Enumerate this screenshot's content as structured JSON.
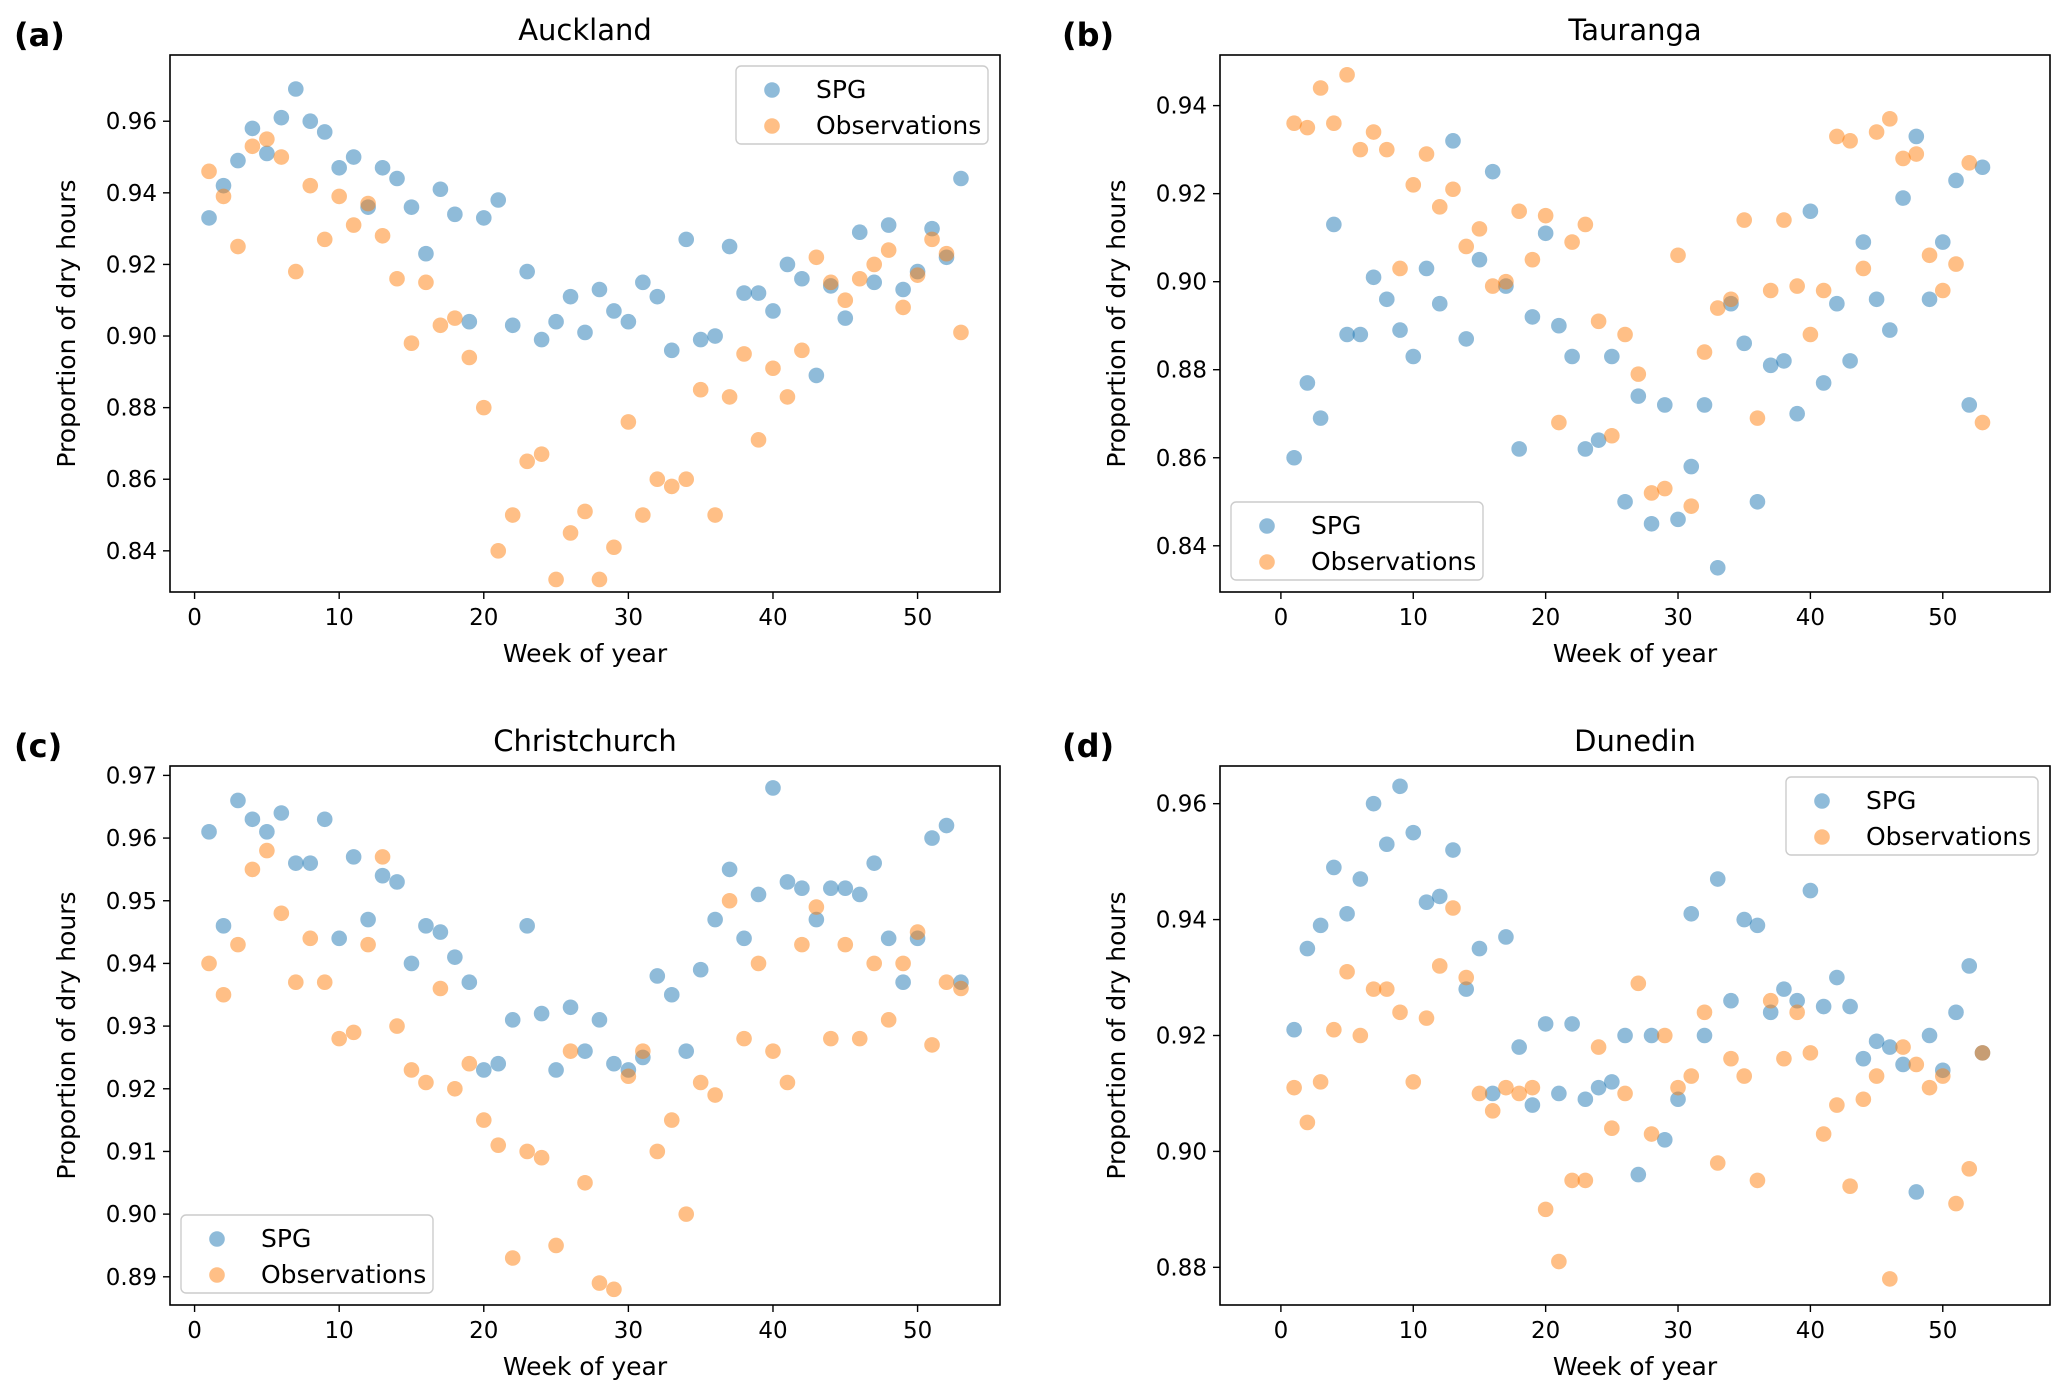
{
  "chart_data": [
    {
      "type": "scatter",
      "panel_label": "(a)",
      "title": "Auckland",
      "xlabel": "Week of year",
      "ylabel": "Proportion of dry hours",
      "xlim": [
        -1.7,
        55.7
      ],
      "ylim": [
        0.8285,
        0.9785
      ],
      "xticks": [
        0,
        10,
        20,
        30,
        40,
        50
      ],
      "yticks": [
        0.84,
        0.86,
        0.88,
        0.9,
        0.92,
        0.94,
        0.96
      ],
      "ytick_labels": [
        "0.84",
        "0.86",
        "0.88",
        "0.90",
        "0.92",
        "0.94",
        "0.96"
      ],
      "legend_position": "top-right",
      "series": [
        {
          "name": "SPG",
          "color": "#1f77b4",
          "x": [
            1,
            2,
            3,
            4,
            5,
            6,
            7,
            8,
            9,
            10,
            11,
            12,
            13,
            14,
            15,
            16,
            17,
            18,
            19,
            20,
            21,
            22,
            23,
            24,
            25,
            26,
            27,
            28,
            29,
            30,
            31,
            32,
            33,
            34,
            35,
            36,
            37,
            38,
            39,
            40,
            41,
            42,
            43,
            44,
            45,
            46,
            47,
            48,
            49,
            50,
            51,
            52,
            53
          ],
          "y": [
            0.933,
            0.942,
            0.949,
            0.958,
            0.951,
            0.961,
            0.969,
            0.96,
            0.957,
            0.947,
            0.95,
            0.936,
            0.947,
            0.944,
            0.936,
            0.923,
            0.941,
            0.934,
            0.904,
            0.933,
            0.938,
            0.903,
            0.918,
            0.899,
            0.904,
            0.911,
            0.901,
            0.913,
            0.907,
            0.904,
            0.915,
            0.911,
            0.896,
            0.927,
            0.899,
            0.9,
            0.925,
            0.912,
            0.912,
            0.907,
            0.92,
            0.916,
            0.889,
            0.914,
            0.905,
            0.929,
            0.915,
            0.931,
            0.913,
            0.918,
            0.93,
            0.922,
            0.944
          ]
        },
        {
          "name": "Observations",
          "color": "#ff7f0e",
          "x": [
            1,
            2,
            3,
            4,
            5,
            6,
            7,
            8,
            9,
            10,
            11,
            12,
            13,
            14,
            15,
            16,
            17,
            18,
            19,
            20,
            21,
            22,
            23,
            24,
            25,
            26,
            27,
            28,
            29,
            30,
            31,
            32,
            33,
            34,
            35,
            36,
            37,
            38,
            39,
            40,
            41,
            42,
            43,
            44,
            45,
            46,
            47,
            48,
            49,
            50,
            51,
            52,
            53
          ],
          "y": [
            0.946,
            0.939,
            0.925,
            0.953,
            0.955,
            0.95,
            0.918,
            0.942,
            0.927,
            0.939,
            0.931,
            0.937,
            0.928,
            0.916,
            0.898,
            0.915,
            0.903,
            0.905,
            0.894,
            0.88,
            0.84,
            0.85,
            0.865,
            0.867,
            0.832,
            0.845,
            0.851,
            0.832,
            0.841,
            0.876,
            0.85,
            0.86,
            0.858,
            0.86,
            0.885,
            0.85,
            0.883,
            0.895,
            0.871,
            0.891,
            0.883,
            0.896,
            0.922,
            0.915,
            0.91,
            0.916,
            0.92,
            0.924,
            0.908,
            0.917,
            0.927,
            0.923,
            0.901
          ]
        }
      ]
    },
    {
      "type": "scatter",
      "panel_label": "(b)",
      "title": "Tauranga",
      "xlabel": "Week of year",
      "ylabel": "Proportion of dry hours",
      "xlim": [
        -4.6,
        58.1
      ],
      "ylim": [
        0.8295,
        0.9515
      ],
      "xticks": [
        0,
        10,
        20,
        30,
        40,
        50
      ],
      "yticks": [
        0.84,
        0.86,
        0.88,
        0.9,
        0.92,
        0.94
      ],
      "ytick_labels": [
        "0.84",
        "0.86",
        "0.88",
        "0.90",
        "0.92",
        "0.94"
      ],
      "legend_position": "bottom-left",
      "series": [
        {
          "name": "SPG",
          "color": "#1f77b4",
          "x": [
            1,
            2,
            3,
            4,
            5,
            6,
            7,
            8,
            9,
            10,
            11,
            12,
            13,
            14,
            15,
            16,
            17,
            18,
            19,
            20,
            21,
            22,
            23,
            24,
            25,
            26,
            27,
            28,
            29,
            30,
            31,
            32,
            33,
            34,
            35,
            36,
            37,
            38,
            39,
            40,
            41,
            42,
            43,
            44,
            45,
            46,
            47,
            48,
            49,
            50,
            51,
            52,
            53
          ],
          "y": [
            0.86,
            0.877,
            0.869,
            0.913,
            0.888,
            0.888,
            0.901,
            0.896,
            0.889,
            0.883,
            0.903,
            0.895,
            0.932,
            0.887,
            0.905,
            0.925,
            0.899,
            0.862,
            0.892,
            0.911,
            0.89,
            0.883,
            0.862,
            0.864,
            0.883,
            0.85,
            0.874,
            0.845,
            0.872,
            0.846,
            0.858,
            0.872,
            0.835,
            0.895,
            0.886,
            0.85,
            0.881,
            0.882,
            0.87,
            0.916,
            0.877,
            0.895,
            0.882,
            0.909,
            0.896,
            0.889,
            0.919,
            0.933,
            0.896,
            0.909,
            0.923,
            0.872,
            0.926
          ]
        },
        {
          "name": "Observations",
          "color": "#ff7f0e",
          "x": [
            1,
            2,
            3,
            4,
            5,
            6,
            7,
            8,
            9,
            10,
            11,
            12,
            13,
            14,
            15,
            16,
            17,
            18,
            19,
            20,
            21,
            22,
            23,
            24,
            25,
            26,
            27,
            28,
            29,
            30,
            31,
            32,
            33,
            34,
            35,
            36,
            37,
            38,
            39,
            40,
            41,
            42,
            43,
            44,
            45,
            46,
            47,
            48,
            49,
            50,
            51,
            52,
            53
          ],
          "y": [
            0.936,
            0.935,
            0.944,
            0.936,
            0.947,
            0.93,
            0.934,
            0.93,
            0.903,
            0.922,
            0.929,
            0.917,
            0.921,
            0.908,
            0.912,
            0.899,
            0.9,
            0.916,
            0.905,
            0.915,
            0.868,
            0.909,
            0.913,
            0.891,
            0.865,
            0.888,
            0.879,
            0.852,
            0.853,
            0.906,
            0.849,
            0.884,
            0.894,
            0.896,
            0.914,
            0.869,
            0.898,
            0.914,
            0.899,
            0.888,
            0.898,
            0.933,
            0.932,
            0.903,
            0.934,
            0.937,
            0.928,
            0.929,
            0.906,
            0.898,
            0.904,
            0.927,
            0.868
          ]
        }
      ]
    },
    {
      "type": "scatter",
      "panel_label": "(c)",
      "title": "Christchurch",
      "xlabel": "Week of year",
      "ylabel": "Proportion of dry hours",
      "xlim": [
        -1.7,
        55.7
      ],
      "ylim": [
        0.8855,
        0.9715
      ],
      "xticks": [
        0,
        10,
        20,
        30,
        40,
        50
      ],
      "yticks": [
        0.89,
        0.9,
        0.91,
        0.92,
        0.93,
        0.94,
        0.95,
        0.96,
        0.97
      ],
      "ytick_labels": [
        "0.89",
        "0.90",
        "0.91",
        "0.92",
        "0.93",
        "0.94",
        "0.95",
        "0.96",
        "0.97"
      ],
      "legend_position": "bottom-left",
      "series": [
        {
          "name": "SPG",
          "color": "#1f77b4",
          "x": [
            1,
            2,
            3,
            4,
            5,
            6,
            7,
            8,
            9,
            10,
            11,
            12,
            13,
            14,
            15,
            16,
            17,
            18,
            19,
            20,
            21,
            22,
            23,
            24,
            25,
            26,
            27,
            28,
            29,
            30,
            31,
            32,
            33,
            34,
            35,
            36,
            37,
            38,
            39,
            40,
            41,
            42,
            43,
            44,
            45,
            46,
            47,
            48,
            49,
            50,
            51,
            52,
            53
          ],
          "y": [
            0.961,
            0.946,
            0.966,
            0.963,
            0.961,
            0.964,
            0.956,
            0.956,
            0.963,
            0.944,
            0.957,
            0.947,
            0.954,
            0.953,
            0.94,
            0.946,
            0.945,
            0.941,
            0.937,
            0.923,
            0.924,
            0.931,
            0.946,
            0.932,
            0.923,
            0.933,
            0.926,
            0.931,
            0.924,
            0.923,
            0.925,
            0.938,
            0.935,
            0.926,
            0.939,
            0.947,
            0.955,
            0.944,
            0.951,
            0.968,
            0.953,
            0.952,
            0.947,
            0.952,
            0.952,
            0.951,
            0.956,
            0.944,
            0.937,
            0.944,
            0.96,
            0.962,
            0.937
          ]
        },
        {
          "name": "Observations",
          "color": "#ff7f0e",
          "x": [
            1,
            2,
            3,
            4,
            5,
            6,
            7,
            8,
            9,
            10,
            11,
            12,
            13,
            14,
            15,
            16,
            17,
            18,
            19,
            20,
            21,
            22,
            23,
            24,
            25,
            26,
            27,
            28,
            29,
            30,
            31,
            32,
            33,
            34,
            35,
            36,
            37,
            38,
            39,
            40,
            41,
            42,
            43,
            44,
            45,
            46,
            47,
            48,
            49,
            50,
            51,
            52,
            53
          ],
          "y": [
            0.94,
            0.935,
            0.943,
            0.955,
            0.958,
            0.948,
            0.937,
            0.944,
            0.937,
            0.928,
            0.929,
            0.943,
            0.957,
            0.93,
            0.923,
            0.921,
            0.936,
            0.92,
            0.924,
            0.915,
            0.911,
            0.893,
            0.91,
            0.909,
            0.895,
            0.926,
            0.905,
            0.889,
            0.888,
            0.922,
            0.926,
            0.91,
            0.915,
            0.9,
            0.921,
            0.919,
            0.95,
            0.928,
            0.94,
            0.926,
            0.921,
            0.943,
            0.949,
            0.928,
            0.943,
            0.928,
            0.94,
            0.931,
            0.94,
            0.945,
            0.927,
            0.937,
            0.936
          ]
        }
      ]
    },
    {
      "type": "scatter",
      "panel_label": "(d)",
      "title": "Dunedin",
      "xlabel": "Week of year",
      "ylabel": "Proportion of dry hours",
      "xlim": [
        -4.6,
        58.1
      ],
      "ylim": [
        0.8735,
        0.9665
      ],
      "xticks": [
        0,
        10,
        20,
        30,
        40,
        50
      ],
      "yticks": [
        0.88,
        0.9,
        0.92,
        0.94,
        0.96
      ],
      "ytick_labels": [
        "0.88",
        "0.90",
        "0.92",
        "0.94",
        "0.96"
      ],
      "legend_position": "top-right",
      "series": [
        {
          "name": "SPG",
          "color": "#1f77b4",
          "x": [
            1,
            2,
            3,
            4,
            5,
            6,
            7,
            8,
            9,
            10,
            11,
            12,
            13,
            14,
            15,
            16,
            17,
            18,
            19,
            20,
            21,
            22,
            23,
            24,
            25,
            26,
            27,
            28,
            29,
            30,
            31,
            32,
            33,
            34,
            35,
            36,
            37,
            38,
            39,
            40,
            41,
            42,
            43,
            44,
            45,
            46,
            47,
            48,
            49,
            50,
            51,
            52,
            53
          ],
          "y": [
            0.921,
            0.935,
            0.939,
            0.949,
            0.941,
            0.947,
            0.96,
            0.953,
            0.963,
            0.955,
            0.943,
            0.944,
            0.952,
            0.928,
            0.935,
            0.91,
            0.937,
            0.918,
            0.908,
            0.922,
            0.91,
            0.922,
            0.909,
            0.911,
            0.912,
            0.92,
            0.896,
            0.92,
            0.902,
            0.909,
            0.941,
            0.92,
            0.947,
            0.926,
            0.94,
            0.939,
            0.924,
            0.928,
            0.926,
            0.945,
            0.925,
            0.93,
            0.925,
            0.916,
            0.919,
            0.918,
            0.915,
            0.893,
            0.92,
            0.914,
            0.924,
            0.932,
            0.917
          ]
        },
        {
          "name": "Observations",
          "color": "#ff7f0e",
          "x": [
            1,
            2,
            3,
            4,
            5,
            6,
            7,
            8,
            9,
            10,
            11,
            12,
            13,
            14,
            15,
            16,
            17,
            18,
            19,
            20,
            21,
            22,
            23,
            24,
            25,
            26,
            27,
            28,
            29,
            30,
            31,
            32,
            33,
            34,
            35,
            36,
            37,
            38,
            39,
            40,
            41,
            42,
            43,
            44,
            45,
            46,
            47,
            48,
            49,
            50,
            51,
            52,
            53
          ],
          "y": [
            0.911,
            0.905,
            0.912,
            0.921,
            0.931,
            0.92,
            0.928,
            0.928,
            0.924,
            0.912,
            0.923,
            0.932,
            0.942,
            0.93,
            0.91,
            0.907,
            0.911,
            0.91,
            0.911,
            0.89,
            0.881,
            0.895,
            0.895,
            0.918,
            0.904,
            0.91,
            0.929,
            0.903,
            0.92,
            0.911,
            0.913,
            0.924,
            0.898,
            0.916,
            0.913,
            0.895,
            0.926,
            0.916,
            0.924,
            0.917,
            0.903,
            0.908,
            0.894,
            0.909,
            0.913,
            0.878,
            0.918,
            0.915,
            0.911,
            0.913,
            0.891,
            0.897,
            0.917
          ]
        }
      ]
    }
  ]
}
